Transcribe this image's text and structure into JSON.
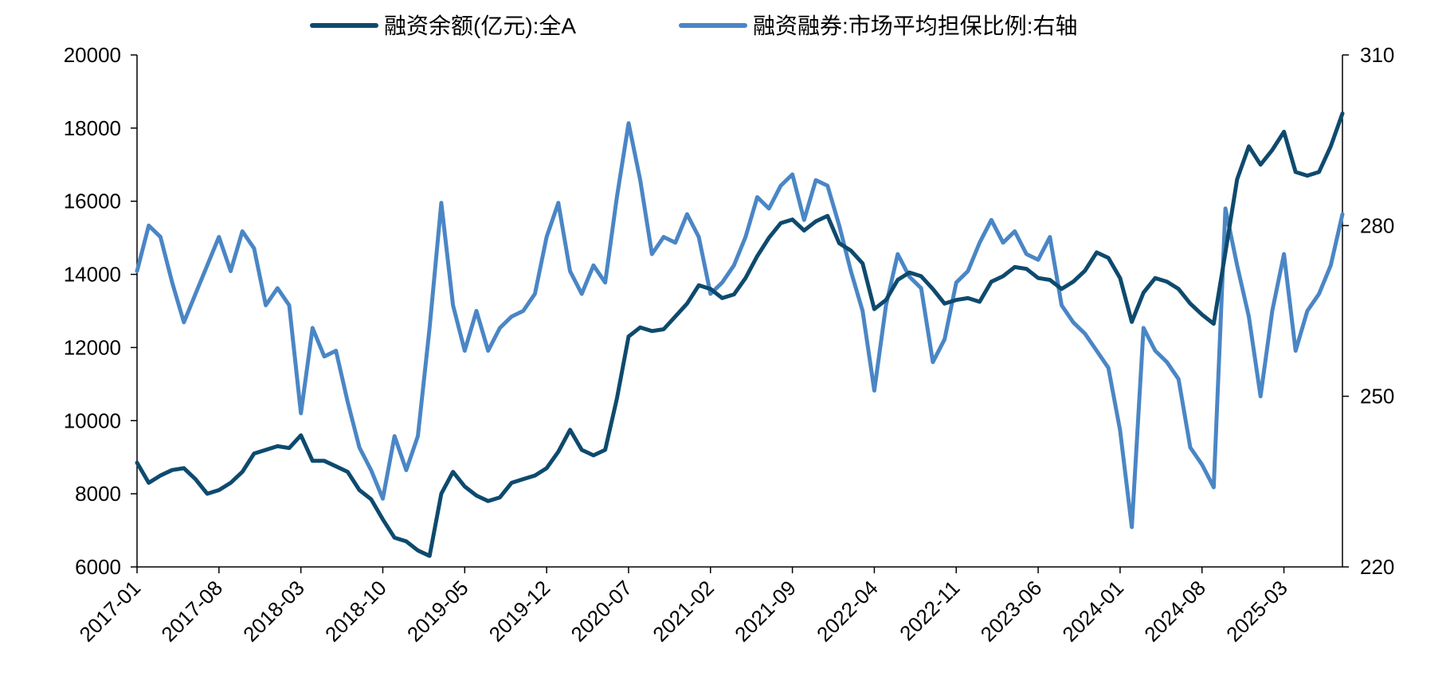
{
  "chart_data": {
    "type": "line",
    "x_labels": [
      "2017-01",
      "2017-08",
      "2018-03",
      "2018-10",
      "2019-05",
      "2019-12",
      "2020-07",
      "2021-02",
      "2021-09",
      "2022-04",
      "2022-11",
      "2023-06",
      "2024-01",
      "2024-08",
      "2025-03"
    ],
    "y_left": {
      "ticks": [
        6000,
        8000,
        10000,
        12000,
        14000,
        16000,
        18000,
        20000
      ],
      "ylim": [
        6000,
        20000
      ]
    },
    "y_right": {
      "ticks": [
        220,
        250,
        280,
        310
      ],
      "ylim": [
        220,
        310
      ]
    },
    "x_range": [
      "2017-01",
      "2025-08"
    ],
    "grid": false,
    "legend_position": "top",
    "series": [
      {
        "name": "融资余额(亿元):全A",
        "axis": "left",
        "color": "#0e4a6e",
        "points": [
          [
            "2017-01",
            8850
          ],
          [
            "2017-02",
            8300
          ],
          [
            "2017-03",
            8500
          ],
          [
            "2017-04",
            8650
          ],
          [
            "2017-05",
            8700
          ],
          [
            "2017-06",
            8400
          ],
          [
            "2017-07",
            8000
          ],
          [
            "2017-08",
            8100
          ],
          [
            "2017-09",
            8300
          ],
          [
            "2017-10",
            8600
          ],
          [
            "2017-11",
            9100
          ],
          [
            "2017-12",
            9200
          ],
          [
            "2018-01",
            9300
          ],
          [
            "2018-02",
            9250
          ],
          [
            "2018-03",
            9600
          ],
          [
            "2018-04",
            8900
          ],
          [
            "2018-05",
            8900
          ],
          [
            "2018-06",
            8750
          ],
          [
            "2018-07",
            8600
          ],
          [
            "2018-08",
            8100
          ],
          [
            "2018-09",
            7850
          ],
          [
            "2018-10",
            7300
          ],
          [
            "2018-11",
            6800
          ],
          [
            "2018-12",
            6700
          ],
          [
            "2019-01",
            6450
          ],
          [
            "2019-02",
            6300
          ],
          [
            "2019-03",
            8000
          ],
          [
            "2019-04",
            8600
          ],
          [
            "2019-05",
            8200
          ],
          [
            "2019-06",
            7950
          ],
          [
            "2019-07",
            7800
          ],
          [
            "2019-08",
            7900
          ],
          [
            "2019-09",
            8300
          ],
          [
            "2019-10",
            8400
          ],
          [
            "2019-11",
            8500
          ],
          [
            "2019-12",
            8700
          ],
          [
            "2020-01",
            9150
          ],
          [
            "2020-02",
            9750
          ],
          [
            "2020-03",
            9200
          ],
          [
            "2020-04",
            9050
          ],
          [
            "2020-05",
            9200
          ],
          [
            "2020-06",
            10600
          ],
          [
            "2020-07",
            12300
          ],
          [
            "2020-08",
            12550
          ],
          [
            "2020-09",
            12450
          ],
          [
            "2020-10",
            12500
          ],
          [
            "2020-11",
            12850
          ],
          [
            "2020-12",
            13200
          ],
          [
            "2021-01",
            13700
          ],
          [
            "2021-02",
            13600
          ],
          [
            "2021-03",
            13350
          ],
          [
            "2021-04",
            13450
          ],
          [
            "2021-05",
            13900
          ],
          [
            "2021-06",
            14500
          ],
          [
            "2021-07",
            15000
          ],
          [
            "2021-08",
            15400
          ],
          [
            "2021-09",
            15500
          ],
          [
            "2021-10",
            15200
          ],
          [
            "2021-11",
            15450
          ],
          [
            "2021-12",
            15600
          ],
          [
            "2022-01",
            14850
          ],
          [
            "2022-02",
            14650
          ],
          [
            "2022-03",
            14300
          ],
          [
            "2022-04",
            13050
          ],
          [
            "2022-05",
            13300
          ],
          [
            "2022-06",
            13850
          ],
          [
            "2022-07",
            14050
          ],
          [
            "2022-08",
            13950
          ],
          [
            "2022-09",
            13600
          ],
          [
            "2022-10",
            13200
          ],
          [
            "2022-11",
            13300
          ],
          [
            "2022-12",
            13350
          ],
          [
            "2023-01",
            13250
          ],
          [
            "2023-02",
            13800
          ],
          [
            "2023-03",
            13950
          ],
          [
            "2023-04",
            14200
          ],
          [
            "2023-05",
            14150
          ],
          [
            "2023-06",
            13900
          ],
          [
            "2023-07",
            13850
          ],
          [
            "2023-08",
            13600
          ],
          [
            "2023-09",
            13800
          ],
          [
            "2023-10",
            14100
          ],
          [
            "2023-11",
            14600
          ],
          [
            "2023-12",
            14450
          ],
          [
            "2024-01",
            13900
          ],
          [
            "2024-02",
            12700
          ],
          [
            "2024-03",
            13500
          ],
          [
            "2024-04",
            13900
          ],
          [
            "2024-05",
            13800
          ],
          [
            "2024-06",
            13600
          ],
          [
            "2024-07",
            13200
          ],
          [
            "2024-08",
            12900
          ],
          [
            "2024-09",
            12650
          ],
          [
            "2024-10",
            14600
          ],
          [
            "2024-11",
            16600
          ],
          [
            "2024-12",
            17500
          ],
          [
            "2025-01",
            17000
          ],
          [
            "2025-02",
            17400
          ],
          [
            "2025-03",
            17900
          ],
          [
            "2025-04",
            16800
          ],
          [
            "2025-05",
            16700
          ],
          [
            "2025-06",
            16800
          ],
          [
            "2025-07",
            17500
          ],
          [
            "2025-08",
            18400
          ]
        ]
      },
      {
        "name": "融资融券:市场平均担保比例:右轴",
        "axis": "right",
        "color": "#4a86c5",
        "points": [
          [
            "2017-01",
            272
          ],
          [
            "2017-02",
            280
          ],
          [
            "2017-03",
            278
          ],
          [
            "2017-04",
            270
          ],
          [
            "2017-05",
            263
          ],
          [
            "2017-06",
            268
          ],
          [
            "2017-07",
            273
          ],
          [
            "2017-08",
            278
          ],
          [
            "2017-09",
            272
          ],
          [
            "2017-10",
            279
          ],
          [
            "2017-11",
            276
          ],
          [
            "2017-12",
            266
          ],
          [
            "2018-01",
            269
          ],
          [
            "2018-02",
            266
          ],
          [
            "2018-03",
            247
          ],
          [
            "2018-04",
            262
          ],
          [
            "2018-05",
            257
          ],
          [
            "2018-06",
            258
          ],
          [
            "2018-07",
            249
          ],
          [
            "2018-08",
            241
          ],
          [
            "2018-09",
            237
          ],
          [
            "2018-10",
            232
          ],
          [
            "2018-11",
            243
          ],
          [
            "2018-12",
            237
          ],
          [
            "2019-01",
            243
          ],
          [
            "2019-02",
            262
          ],
          [
            "2019-03",
            284
          ],
          [
            "2019-04",
            266
          ],
          [
            "2019-05",
            258
          ],
          [
            "2019-06",
            265
          ],
          [
            "2019-07",
            258
          ],
          [
            "2019-08",
            262
          ],
          [
            "2019-09",
            264
          ],
          [
            "2019-10",
            265
          ],
          [
            "2019-11",
            268
          ],
          [
            "2019-12",
            278
          ],
          [
            "2020-01",
            284
          ],
          [
            "2020-02",
            272
          ],
          [
            "2020-03",
            268
          ],
          [
            "2020-04",
            273
          ],
          [
            "2020-05",
            270
          ],
          [
            "2020-06",
            285
          ],
          [
            "2020-07",
            298
          ],
          [
            "2020-08",
            288
          ],
          [
            "2020-09",
            275
          ],
          [
            "2020-10",
            278
          ],
          [
            "2020-11",
            277
          ],
          [
            "2020-12",
            282
          ],
          [
            "2021-01",
            278
          ],
          [
            "2021-02",
            268
          ],
          [
            "2021-03",
            270
          ],
          [
            "2021-04",
            273
          ],
          [
            "2021-05",
            278
          ],
          [
            "2021-06",
            285
          ],
          [
            "2021-07",
            283
          ],
          [
            "2021-08",
            287
          ],
          [
            "2021-09",
            289
          ],
          [
            "2021-10",
            281
          ],
          [
            "2021-11",
            288
          ],
          [
            "2021-12",
            287
          ],
          [
            "2022-01",
            280
          ],
          [
            "2022-02",
            272
          ],
          [
            "2022-03",
            265
          ],
          [
            "2022-04",
            251
          ],
          [
            "2022-05",
            266
          ],
          [
            "2022-06",
            275
          ],
          [
            "2022-07",
            271
          ],
          [
            "2022-08",
            269
          ],
          [
            "2022-09",
            256
          ],
          [
            "2022-10",
            260
          ],
          [
            "2022-11",
            270
          ],
          [
            "2022-12",
            272
          ],
          [
            "2023-01",
            277
          ],
          [
            "2023-02",
            281
          ],
          [
            "2023-03",
            277
          ],
          [
            "2023-04",
            279
          ],
          [
            "2023-05",
            275
          ],
          [
            "2023-06",
            274
          ],
          [
            "2023-07",
            278
          ],
          [
            "2023-08",
            266
          ],
          [
            "2023-09",
            263
          ],
          [
            "2023-10",
            261
          ],
          [
            "2023-11",
            258
          ],
          [
            "2023-12",
            255
          ],
          [
            "2024-01",
            244
          ],
          [
            "2024-02",
            227
          ],
          [
            "2024-03",
            262
          ],
          [
            "2024-04",
            258
          ],
          [
            "2024-05",
            256
          ],
          [
            "2024-06",
            253
          ],
          [
            "2024-07",
            241
          ],
          [
            "2024-08",
            238
          ],
          [
            "2024-09",
            234
          ],
          [
            "2024-10",
            283
          ],
          [
            "2024-11",
            273
          ],
          [
            "2024-12",
            264
          ],
          [
            "2025-01",
            250
          ],
          [
            "2025-02",
            265
          ],
          [
            "2025-03",
            275
          ],
          [
            "2025-04",
            258
          ],
          [
            "2025-05",
            265
          ],
          [
            "2025-06",
            268
          ],
          [
            "2025-07",
            273
          ],
          [
            "2025-08",
            282
          ]
        ]
      }
    ]
  }
}
